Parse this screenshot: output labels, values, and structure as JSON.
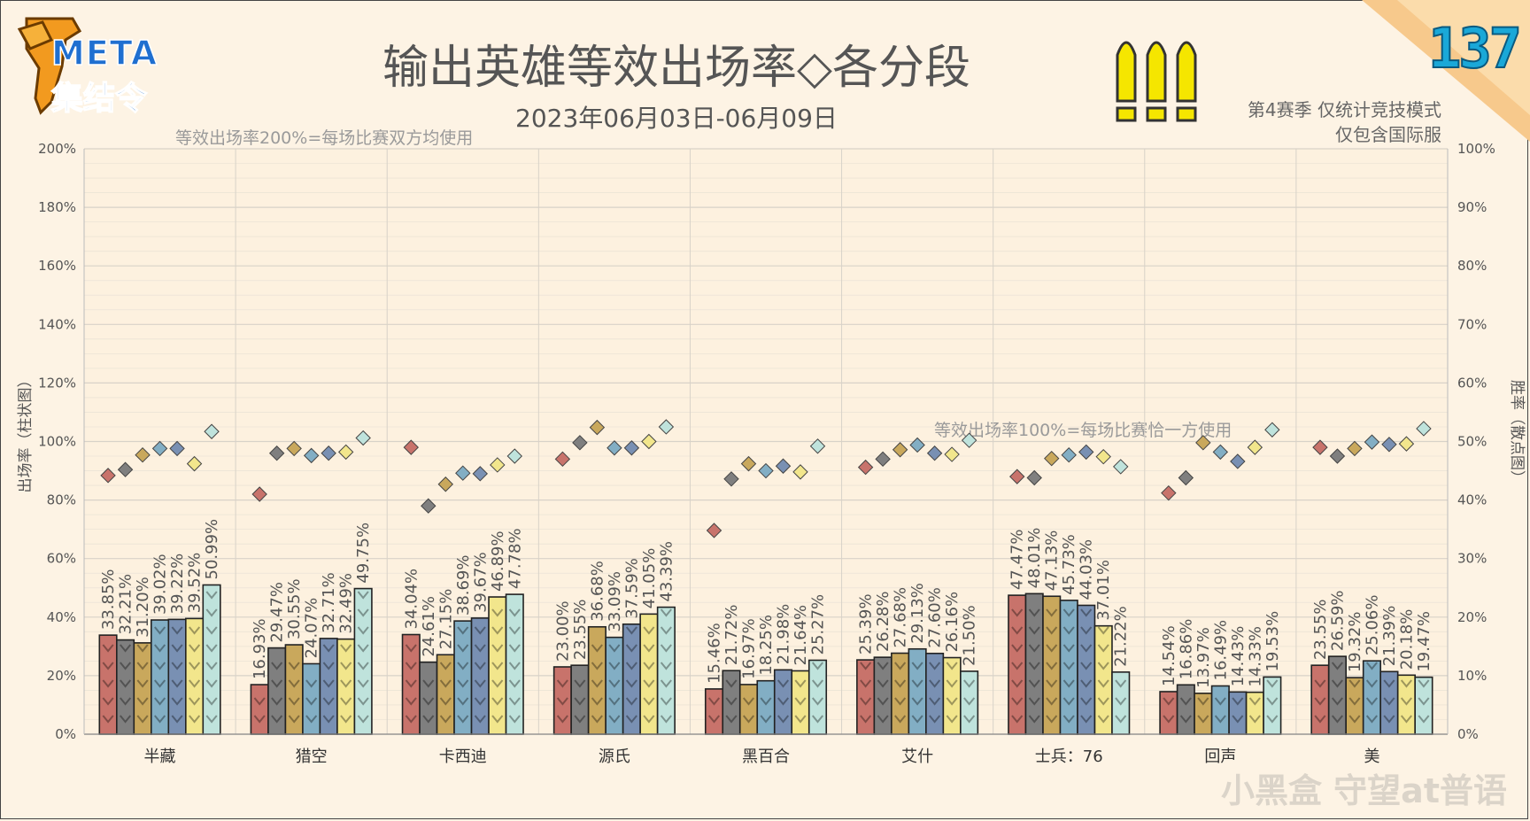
{
  "header": {
    "logo_text": "META",
    "logo_subtext": "集结令",
    "title": "输出英雄等效出场率◇各分段",
    "subtitle": "2023年06月03日-06月09日",
    "note_line1": "第4赛季 仅统计竞技模式",
    "note_line2": "仅包含国际服",
    "issue_number": "137",
    "watermark": "小黑盒 守望at普语"
  },
  "chart_data": {
    "type": "bar",
    "annotation_top": "等效出场率200%=每场比赛双方均使用",
    "annotation_mid": "等效出场率100%=每场比赛恰一方使用",
    "ylabel_left": "出场率（柱状图）",
    "ylabel_right": "胜率（散点图）",
    "ylim_left": [
      0,
      200
    ],
    "ylim_right": [
      0,
      100
    ],
    "yticks_left": [
      "0%",
      "20%",
      "40%",
      "60%",
      "80%",
      "100%",
      "120%",
      "140%",
      "160%",
      "180%",
      "200%"
    ],
    "yticks_right": [
      "0%",
      "10%",
      "20%",
      "30%",
      "40%",
      "50%",
      "60%",
      "70%",
      "80%",
      "90%",
      "100%"
    ],
    "tier_colors": [
      "#c8736b",
      "#7f7f7f",
      "#c9a85c",
      "#82aec4",
      "#7990b3",
      "#f2e68c",
      "#bfe3dc"
    ],
    "categories": [
      "半藏",
      "猎空",
      "卡西迪",
      "源氏",
      "黑百合",
      "艾什",
      "士兵：76",
      "回声",
      "美"
    ],
    "pick_rate": [
      [
        33.85,
        32.21,
        31.2,
        39.02,
        39.22,
        39.52,
        50.99
      ],
      [
        16.93,
        29.47,
        30.55,
        24.07,
        32.71,
        32.49,
        49.75
      ],
      [
        34.04,
        24.61,
        27.15,
        38.69,
        39.67,
        46.89,
        47.78
      ],
      [
        23.0,
        23.55,
        36.68,
        33.09,
        37.59,
        41.05,
        43.39
      ],
      [
        15.46,
        21.72,
        16.97,
        18.25,
        21.98,
        21.64,
        25.27
      ],
      [
        25.39,
        26.28,
        27.68,
        29.13,
        27.6,
        26.16,
        21.5
      ],
      [
        47.47,
        48.01,
        47.13,
        45.73,
        44.03,
        37.01,
        21.22
      ],
      [
        14.54,
        16.86,
        13.97,
        16.49,
        14.43,
        14.33,
        19.53
      ],
      [
        23.55,
        26.59,
        19.32,
        25.06,
        21.39,
        20.18,
        19.47
      ]
    ],
    "pick_rate_labels": [
      [
        "33.85%",
        "32.21%",
        "31.20%",
        "39.02%",
        "39.22%",
        "39.52%",
        "50.99%"
      ],
      [
        "16.93%",
        "29.47%",
        "30.55%",
        "24.07%",
        "32.71%",
        "32.49%",
        "49.75%"
      ],
      [
        "34.04%",
        "24.61%",
        "27.15%",
        "38.69%",
        "39.67%",
        "46.89%",
        "47.78%"
      ],
      [
        "23.00%",
        "23.55%",
        "36.68%",
        "33.09%",
        "37.59%",
        "41.05%",
        "43.39%"
      ],
      [
        "15.46%",
        "21.72%",
        "16.97%",
        "18.25%",
        "21.98%",
        "21.64%",
        "25.27%"
      ],
      [
        "25.39%",
        "26.28%",
        "27.68%",
        "29.13%",
        "27.60%",
        "26.16%",
        "21.50%"
      ],
      [
        "47.47%",
        "48.01%",
        "47.13%",
        "45.73%",
        "44.03%",
        "37.01%",
        "21.22%"
      ],
      [
        "14.54%",
        "16.86%",
        "13.97%",
        "16.49%",
        "14.43%",
        "14.33%",
        "19.53%"
      ],
      [
        "23.55%",
        "26.59%",
        "19.32%",
        "25.06%",
        "21.39%",
        "20.18%",
        "19.47%"
      ]
    ],
    "win_rate": [
      [
        44.2,
        45.2,
        47.7,
        48.8,
        48.8,
        46.2,
        51.7
      ],
      [
        41.0,
        48.0,
        48.8,
        47.6,
        48.0,
        48.2,
        50.6
      ],
      [
        49.0,
        39.0,
        42.7,
        44.6,
        44.5,
        46.0,
        47.5
      ],
      [
        47.0,
        49.8,
        52.4,
        48.9,
        48.9,
        50.0,
        52.5
      ],
      [
        34.8,
        43.6,
        46.2,
        45.0,
        45.8,
        44.8,
        49.2
      ],
      [
        45.6,
        47.0,
        48.6,
        49.4,
        48.0,
        47.8,
        50.2
      ],
      [
        44.0,
        43.8,
        47.1,
        47.7,
        48.2,
        47.4,
        45.7
      ],
      [
        41.2,
        43.8,
        49.8,
        48.2,
        46.6,
        49.0,
        52.0
      ],
      [
        49.0,
        47.5,
        48.8,
        49.9,
        49.5,
        49.6,
        52.2
      ]
    ]
  }
}
